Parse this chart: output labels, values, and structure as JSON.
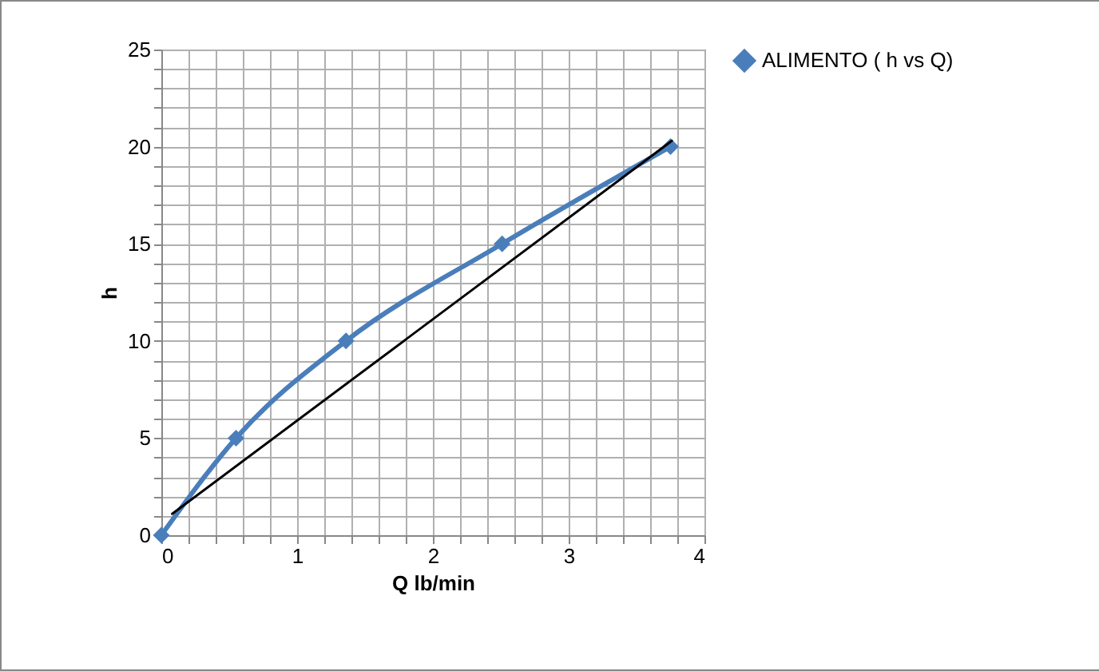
{
  "chart_data": {
    "type": "line",
    "xlabel": "Q lb/min",
    "ylabel": "h",
    "series": [
      {
        "name": "ALIMENTO ( h vs Q)",
        "color": "#4a7ebb",
        "x": [
          0,
          0.55,
          1.36,
          2.51,
          3.75
        ],
        "values": [
          0,
          5,
          10,
          15,
          20
        ],
        "marker": "diamond"
      },
      {
        "type": "line",
        "color": "#000000",
        "x": [
          0.08,
          3.76
        ],
        "values": [
          1.1,
          20.3
        ],
        "marker": "none"
      }
    ],
    "xlim": [
      0,
      4
    ],
    "ylim": [
      0,
      25
    ],
    "xticks": [
      0,
      {
        "value": 0.2,
        "label": null
      },
      {
        "value": 0.4,
        "label": null
      },
      {
        "value": 0.6,
        "label": null
      },
      {
        "value": 0.8,
        "label": null
      },
      1,
      {
        "value": 1.2,
        "label": null
      },
      {
        "value": 1.4,
        "label": null
      },
      {
        "value": 1.6,
        "label": null
      },
      {
        "value": 1.8,
        "label": null
      },
      2,
      {
        "value": 2.2,
        "label": null
      },
      {
        "value": 2.4,
        "label": null
      },
      {
        "value": 2.6,
        "label": null
      },
      {
        "value": 2.8,
        "label": null
      },
      3,
      {
        "value": 3.2,
        "label": null
      },
      {
        "value": 3.4,
        "label": null
      },
      {
        "value": 3.6,
        "label": null
      },
      {
        "value": 3.8,
        "label": null
      },
      4
    ],
    "yticks": [
      0,
      {
        "value": 1,
        "label": null
      },
      {
        "value": 2,
        "label": null
      },
      {
        "value": 3,
        "label": null
      },
      {
        "value": 4,
        "label": null
      },
      5,
      {
        "value": 6,
        "label": null
      },
      {
        "value": 7,
        "label": null
      },
      {
        "value": 8,
        "label": null
      },
      {
        "value": 9,
        "label": null
      },
      10,
      {
        "value": 11,
        "label": null
      },
      {
        "value": 12,
        "label": null
      },
      {
        "value": 13,
        "label": null
      },
      {
        "value": 14,
        "label": null
      },
      15,
      {
        "value": 16,
        "label": null
      },
      {
        "value": 17,
        "label": null
      },
      {
        "value": 18,
        "label": null
      },
      {
        "value": 19,
        "label": null
      },
      20,
      {
        "value": 21,
        "label": null
      },
      {
        "value": 22,
        "label": null
      },
      {
        "value": 23,
        "label": null
      },
      {
        "value": 24,
        "label": null
      },
      25
    ],
    "grid": true,
    "legend": "right"
  }
}
